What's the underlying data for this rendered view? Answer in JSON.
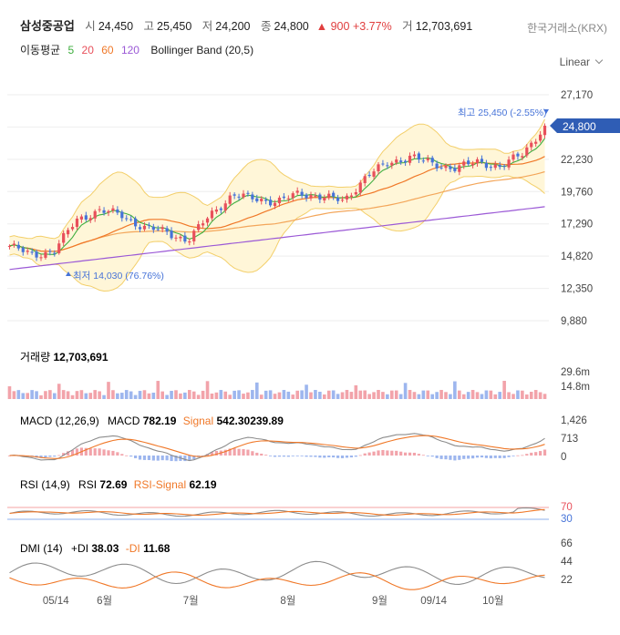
{
  "header": {
    "name": "삼성중공업",
    "open_label": "시",
    "open": "24,450",
    "high_label": "고",
    "high": "25,450",
    "low_label": "저",
    "low": "24,200",
    "close_label": "종",
    "close": "24,800",
    "change": "▲ 900",
    "change_pct": "+3.77%",
    "volume_label": "거",
    "volume": "12,703,691",
    "exchange": "한국거래소(KRX)"
  },
  "ma_legend": {
    "title": "이동평균",
    "p5": "5",
    "p20": "20",
    "p60": "60",
    "p120": "120",
    "bb": "Bollinger Band (20,5)"
  },
  "scale_mode": "Linear",
  "colors": {
    "up": "#e8505b",
    "down": "#4673d8",
    "ma5": "#3fae3f",
    "ma20": "#f07828",
    "ma60": "#f3a65a",
    "ma120": "#9b59d6",
    "bb_fill": "#fff6d8",
    "bb_line": "#f3cf6a",
    "macd": "#8c8c8c",
    "signal": "#f07828",
    "rsi": "#8c8c8c",
    "rsi_signal": "#f07828"
  },
  "chart_data": [
    {
      "type": "candlestick",
      "title": "",
      "y_ticks": [
        "27,170",
        "24,700",
        "22,230",
        "19,760",
        "17,290",
        "14,820",
        "12,350",
        "9,880"
      ],
      "y_tick_values": [
        27170,
        24700,
        22230,
        19760,
        17290,
        14820,
        12350,
        9880
      ],
      "ylim": [
        9880,
        27170
      ],
      "current_price_label": "24,800",
      "current_price": 24800,
      "annotations": [
        {
          "text": "최고 25,450 (-2.55%)",
          "value": 25450
        },
        {
          "text": "최저 14,030 (76.76%)",
          "value": 14030
        }
      ],
      "x_ticks": [
        "05/14",
        "6월",
        "7월",
        "8월",
        "9월",
        "09/14",
        "10월"
      ],
      "approx_close_path": [
        {
          "date": "05/07",
          "close": 15600
        },
        {
          "date": "05/14",
          "close": 14900
        },
        {
          "date": "05/21",
          "close": 15200
        },
        {
          "date": "05/28",
          "close": 17600
        },
        {
          "date": "06/04",
          "close": 18300
        },
        {
          "date": "06/11",
          "close": 18000
        },
        {
          "date": "06/18",
          "close": 17000
        },
        {
          "date": "06/25",
          "close": 16700
        },
        {
          "date": "07/02",
          "close": 16000
        },
        {
          "date": "07/09",
          "close": 18000
        },
        {
          "date": "07/16",
          "close": 19500
        },
        {
          "date": "07/23",
          "close": 19200
        },
        {
          "date": "07/30",
          "close": 19000
        },
        {
          "date": "08/06",
          "close": 19600
        },
        {
          "date": "08/13",
          "close": 19400
        },
        {
          "date": "08/20",
          "close": 19000
        },
        {
          "date": "08/27",
          "close": 21000
        },
        {
          "date": "09/03",
          "close": 21900
        },
        {
          "date": "09/10",
          "close": 22500
        },
        {
          "date": "09/17",
          "close": 21800
        },
        {
          "date": "09/24",
          "close": 21600
        },
        {
          "date": "10/01",
          "close": 22000
        },
        {
          "date": "10/08",
          "close": 21700
        },
        {
          "date": "10/15",
          "close": 22600
        },
        {
          "date": "10/22",
          "close": 24800
        }
      ]
    },
    {
      "type": "bar",
      "title": "거래량",
      "value_label": "12,703,691",
      "y_ticks": [
        "29.6m",
        "14.8m"
      ],
      "y_tick_values": [
        29600000,
        14800000
      ]
    },
    {
      "type": "line",
      "title": "MACD (12,26,9)",
      "series_labels": {
        "macd": "MACD",
        "macd_value": "782.19",
        "signal": "Signal",
        "signal_value": "542.30239.89"
      },
      "y_ticks": [
        "1,426",
        "713",
        "0"
      ],
      "y_tick_values": [
        1426,
        713,
        0
      ]
    },
    {
      "type": "line",
      "title": "RSI (14,9)",
      "series_labels": {
        "rsi": "RSI",
        "rsi_value": "72.69",
        "signal": "RSI-Signal",
        "signal_value": "62.19"
      },
      "y_ticks": [
        "70",
        "30"
      ],
      "y_tick_values": [
        70,
        30
      ]
    },
    {
      "type": "line",
      "title": "DMI (14)",
      "series_labels": {
        "pdi": "+DI",
        "pdi_value": "38.03",
        "mdi": "-DI",
        "mdi_value": "11.68"
      },
      "y_ticks": [
        "66",
        "44",
        "22"
      ],
      "y_tick_values": [
        66,
        44,
        22
      ]
    }
  ]
}
